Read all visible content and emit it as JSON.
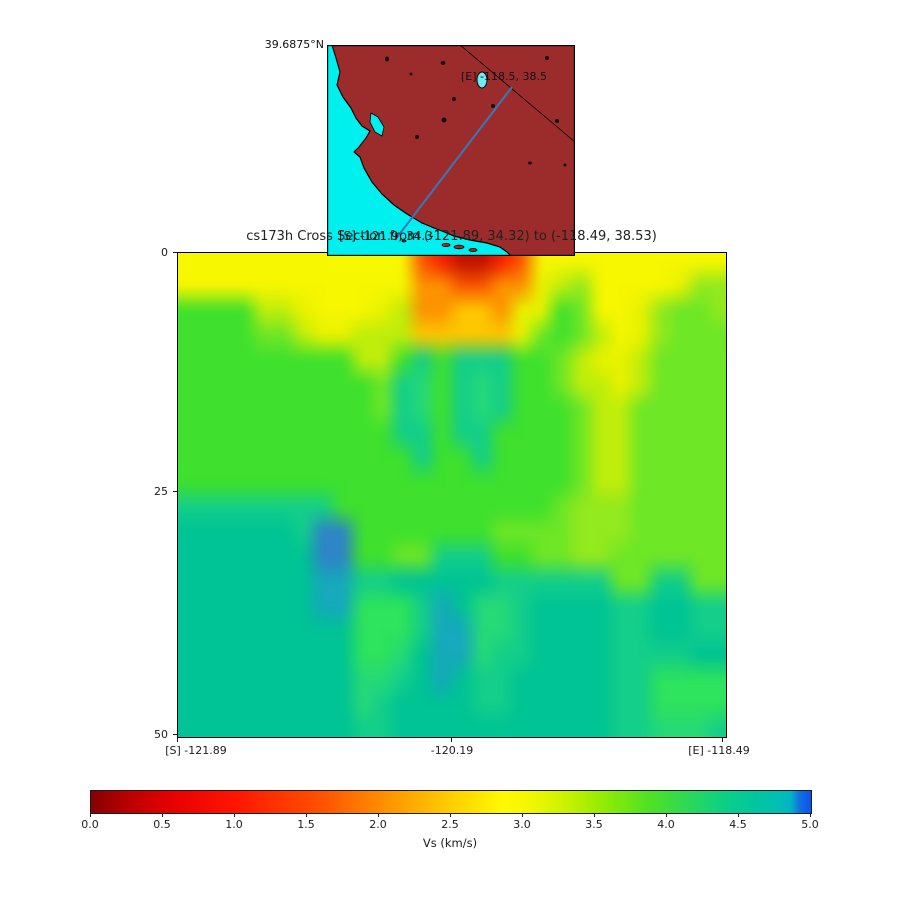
{
  "title": "cs173h Cross Section from (-121.89, 34.32) to (-118.49, 38.53)",
  "map_inset": {
    "top_lat_label": "39.6875°N",
    "start_point_label": "[S] -121.9, 34.3",
    "end_point_label": "[E] -118.5, 38.5",
    "ocean_color": "#00f0f0",
    "land_color": "#9c2c2c",
    "cross_section_line_color": "#3878b8"
  },
  "axes": {
    "y_tick_labels": [
      "0",
      "25",
      "50"
    ],
    "x_tick_labels": [
      "[S] -121.89",
      "-120.19",
      "[E] -118.49"
    ]
  },
  "colorbar": {
    "label": "Vs (km/s)",
    "ticks": [
      "0.0",
      "0.5",
      "1.0",
      "1.5",
      "2.0",
      "2.5",
      "3.0",
      "3.5",
      "4.0",
      "4.5",
      "5.0"
    ]
  },
  "chart_data": {
    "type": "heatmap",
    "title": "cs173h Cross Section from (-121.89, 34.32) to (-118.49, 38.53)",
    "x_axis": {
      "start_label": "[S] -121.89",
      "mid_label": "-120.19",
      "end_label": "[E] -118.49",
      "start_lonlat": [
        -121.89,
        34.32
      ],
      "end_lonlat": [
        -118.49,
        38.53
      ]
    },
    "y_axis": {
      "ticks": [
        0,
        25,
        50
      ],
      "range": [
        0,
        50
      ]
    },
    "value": {
      "label": "Vs (km/s)",
      "range": [
        0,
        5
      ],
      "ticks": [
        0,
        0.5,
        1,
        1.5,
        2,
        2.5,
        3,
        3.5,
        4,
        4.5,
        5
      ]
    },
    "legend_position": "bottom-horizontal-colorbar",
    "colormap_stops": [
      {
        "pos": 0.0,
        "color": "#860000"
      },
      {
        "pos": 0.05,
        "color": "#b80000"
      },
      {
        "pos": 0.11,
        "color": "#e60000"
      },
      {
        "pos": 0.2,
        "color": "#ff1500"
      },
      {
        "pos": 0.32,
        "color": "#ff5200"
      },
      {
        "pos": 0.41,
        "color": "#ff9200"
      },
      {
        "pos": 0.49,
        "color": "#ffc800"
      },
      {
        "pos": 0.57,
        "color": "#fff800"
      },
      {
        "pos": 0.66,
        "color": "#c9f200"
      },
      {
        "pos": 0.77,
        "color": "#55e21f"
      },
      {
        "pos": 0.88,
        "color": "#0ccf86"
      },
      {
        "pos": 0.955,
        "color": "#00c0b2"
      },
      {
        "pos": 0.984,
        "color": "#1470e0"
      },
      {
        "pos": 1.0,
        "color": "#0c52ee"
      }
    ],
    "grid": {
      "cols": 28,
      "rows": 20,
      "palette": {
        "Y": "#f7f700",
        "y": "#e9f300",
        "L": "#bfee0c",
        "l": "#93ea1e",
        "G": "#3fe12e",
        "g": "#6ee727",
        "E": "#2ee35d",
        "S": "#27da78",
        "s": "#14cf8b",
        "T": "#00c495",
        "b": "#17a9bd",
        "B": "#2e85c8",
        "R": "#f92100",
        "D": "#c01200",
        "d": "#fb5800",
        "O": "#fd9300",
        "o": "#fec800"
      },
      "cells": [
        "YYYYYYYYYYYYdRDDRdYYYYYYYYYY",
        "YYYYYYYYYYYYOOddOOyLlYYYYyll",
        "GGGGLLyYYYyLOOooOyyGgYYylggl",
        "GGGGggLyyLLLoooooygGgLYylggg",
        "GGGGGGGGGLLGsGsssGGgLyyLgggg",
        "GGGGGGGGGGgsSGsSsGGgLLyLgggg",
        "GGGGGGGGGGgsSGsSsGGGgLLggggg",
        "GGGGGGGGGGGssGssGGGGgLLggggg",
        "GGGGGGGGGGGGsGGsGGGGgLLggggg",
        "GGGGGGGGGGGGGGGGGGGGgLLggggg",
        "ssssssssGGGGGGGGGGGglllggggg",
        "TTTTTTsBBGGGGGGGgggglllggggg",
        "TTTTTTTBBGGggsssGGggllgggggg",
        "TTTTTTTbbssTTTTTssssssggssgg",
        "TTTTTTTbbEEEsbTSSsTTTTssTTss",
        "TTTTTTTTTEEEsbbSSsTTTTssTTss",
        "TTTTTTTTTEESTbbSssTTTTssssTT",
        "TTTTTTTTTSSsTbTssTTTTTssEEEE",
        "TTTTTTTTTSsTTTTssTTTTTssEEEE",
        "TTTTTTTTTssTTTTTTTTTTTssSSSs"
      ]
    }
  }
}
